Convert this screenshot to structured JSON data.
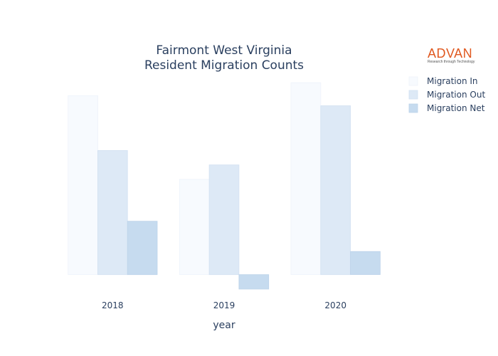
{
  "chart_data": {
    "type": "bar",
    "title_lines": [
      "Fairmont West Virginia",
      "Resident Migration Counts"
    ],
    "xlabel": "year",
    "ylabel": "",
    "categories": [
      "2018",
      "2019",
      "2020"
    ],
    "series": [
      {
        "name": "Migration In",
        "values": [
          124,
          66,
          133
        ],
        "color": "#f7fafe",
        "stroke": "#eef3fb"
      },
      {
        "name": "Migration Out",
        "values": [
          86,
          76,
          117
        ],
        "color": "#dde9f6",
        "stroke": "#d3e1f2"
      },
      {
        "name": "Migration Net",
        "values": [
          37,
          -10,
          16
        ],
        "color": "#c6dbef",
        "stroke": "#bcd3ea"
      }
    ],
    "ylim": [
      -12,
      136
    ],
    "grid": false,
    "show_yaxis": false,
    "legend_position": "top-right"
  },
  "logo": {
    "word": "ADVAN",
    "tagline": "Research through Technology"
  }
}
